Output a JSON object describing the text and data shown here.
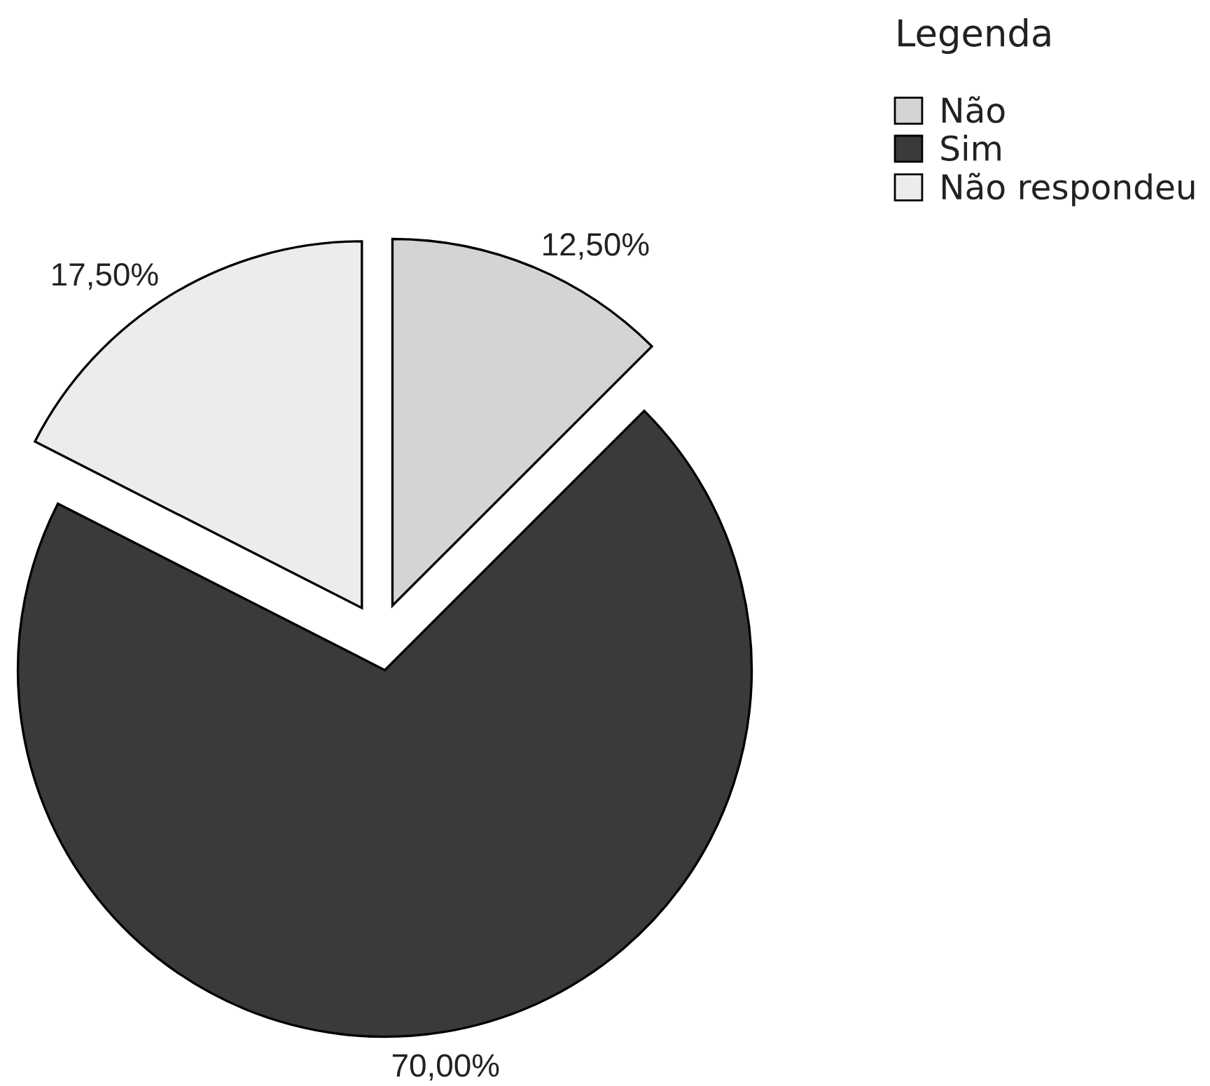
{
  "chart_data": {
    "type": "pie",
    "categories": [
      "Não",
      "Sim",
      "Não respondeu"
    ],
    "values": [
      12.5,
      70,
      17.5
    ],
    "colors": [
      "#d4d4d4",
      "#3a3a3a",
      "#ececec"
    ],
    "value_labels": [
      "12,50%",
      "70,00%",
      "17,50%"
    ],
    "legend_title": "Legenda",
    "legend": "top right"
  }
}
